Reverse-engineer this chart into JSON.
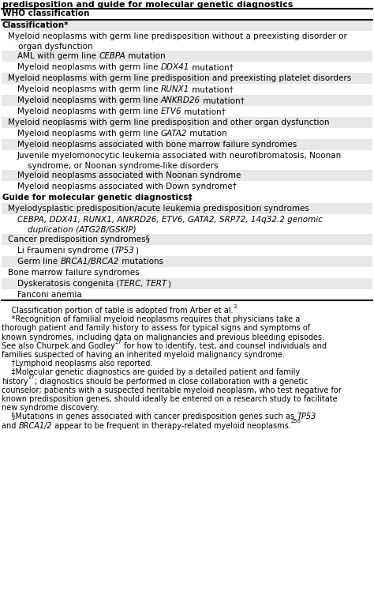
{
  "title": "predisposition and guide for molecular genetic diagnostics",
  "header": "WHO classification",
  "rows": [
    {
      "text": "Classification*",
      "indent": 0,
      "bold": true,
      "bg": "gray",
      "segments": [
        {
          "t": "Classification*",
          "i": false
        }
      ]
    },
    {
      "text": "Myeloid neoplasms with germ line predisposition without a preexisting disorder or organ dysfunction",
      "indent": 1,
      "bold": false,
      "bg": "white",
      "multiline": true,
      "line2": "    organ dysfunction",
      "segments": [
        {
          "t": "Myeloid neoplasms with germ line predisposition without a preexisting disorder or",
          "i": false
        }
      ]
    },
    {
      "text": "AML with germ line ",
      "indent": 2,
      "bold": false,
      "bg": "gray",
      "segments": [
        {
          "t": "AML with germ line ",
          "i": false
        },
        {
          "t": "CEBPA",
          "i": true
        },
        {
          "t": " mutation",
          "i": false
        }
      ]
    },
    {
      "text": "Myeloid neoplasms with germ line ",
      "indent": 2,
      "bold": false,
      "bg": "white",
      "segments": [
        {
          "t": "Myeloid neoplasms with germ line ",
          "i": false
        },
        {
          "t": "DDX41",
          "i": true
        },
        {
          "t": " mutation†",
          "i": false
        }
      ]
    },
    {
      "text": "Myeloid neoplasms with germ line predisposition and preexisting platelet disorders",
      "indent": 1,
      "bold": false,
      "bg": "gray",
      "segments": [
        {
          "t": "Myeloid neoplasms with germ line predisposition and preexisting platelet disorders",
          "i": false
        }
      ]
    },
    {
      "text": "Myeloid neoplasms with germ line ",
      "indent": 2,
      "bold": false,
      "bg": "white",
      "segments": [
        {
          "t": "Myeloid neoplasms with germ line ",
          "i": false
        },
        {
          "t": "RUNX1",
          "i": true
        },
        {
          "t": " mutation†",
          "i": false
        }
      ]
    },
    {
      "text": "Myeloid neoplasms with germ line ",
      "indent": 2,
      "bold": false,
      "bg": "gray",
      "segments": [
        {
          "t": "Myeloid neoplasms with germ line ",
          "i": false
        },
        {
          "t": "ANKRD26",
          "i": true
        },
        {
          "t": " mutation†",
          "i": false
        }
      ]
    },
    {
      "text": "Myeloid neoplasms with germ line ",
      "indent": 2,
      "bold": false,
      "bg": "white",
      "segments": [
        {
          "t": "Myeloid neoplasms with germ line ",
          "i": false
        },
        {
          "t": "ETV6",
          "i": true
        },
        {
          "t": " mutation†",
          "i": false
        }
      ]
    },
    {
      "text": "Myeloid neoplasms with germ line predisposition and other organ dysfunction",
      "indent": 1,
      "bold": false,
      "bg": "gray",
      "segments": [
        {
          "t": "Myeloid neoplasms with germ line predisposition and other organ dysfunction",
          "i": false
        }
      ]
    },
    {
      "text": "Myeloid neoplasms with germ line ",
      "indent": 2,
      "bold": false,
      "bg": "white",
      "segments": [
        {
          "t": "Myeloid neoplasms with germ line ",
          "i": false
        },
        {
          "t": "GATA2",
          "i": true
        },
        {
          "t": " mutation",
          "i": false
        }
      ]
    },
    {
      "text": "Myeloid neoplasms associated with bone marrow failure syndromes",
      "indent": 2,
      "bold": false,
      "bg": "gray",
      "segments": [
        {
          "t": "Myeloid neoplasms associated with bone marrow failure syndromes",
          "i": false
        }
      ]
    },
    {
      "text": "Juvenile myelomonocytic leukemia associated with neurofibromatosis, Noonan syndrome, or Noonan syndrome-like disorders",
      "indent": 2,
      "bold": false,
      "bg": "white",
      "multiline": true,
      "segments": [
        {
          "t": "Juvenile myelomonocytic leukemia associated with neurofibromatosis, Noonan",
          "i": false
        }
      ]
    },
    {
      "text": "Myeloid neoplasms associated with Noonan syndrome",
      "indent": 2,
      "bold": false,
      "bg": "gray",
      "segments": [
        {
          "t": "Myeloid neoplasms associated with Noonan syndrome",
          "i": false
        }
      ]
    },
    {
      "text": "Myeloid neoplasms associated with Down syndrome†",
      "indent": 2,
      "bold": false,
      "bg": "white",
      "segments": [
        {
          "t": "Myeloid neoplasms associated with Down syndrome†",
          "i": false
        }
      ]
    },
    {
      "text": "Guide for molecular genetic diagnostics‡",
      "indent": 0,
      "bold": true,
      "bg": "white",
      "segments": [
        {
          "t": "Guide for molecular genetic diagnostics‡",
          "i": false
        }
      ]
    },
    {
      "text": "Myelodysplastic predisposition/acute leukemia predisposition syndromes",
      "indent": 1,
      "bold": false,
      "bg": "gray",
      "segments": [
        {
          "t": "Myelodysplastic predisposition/acute leukemia predisposition syndromes",
          "i": false
        }
      ]
    },
    {
      "text": "CEBPA italic line",
      "indent": 2,
      "bold": false,
      "bg": "white",
      "multiline": true,
      "segments": [
        {
          "t": "CEBPA, DDX41, RUNX1, ANKRD26, ETV6, GATA2, SRP72, 14q32.2 genomic",
          "i": true
        }
      ]
    },
    {
      "text": "Cancer predisposition syndromes§",
      "indent": 1,
      "bold": false,
      "bg": "gray",
      "segments": [
        {
          "t": "Cancer predisposition syndromes§",
          "i": false
        }
      ]
    },
    {
      "text": "Li Fraumeni syndrome (",
      "indent": 2,
      "bold": false,
      "bg": "white",
      "segments": [
        {
          "t": "Li Fraumeni syndrome (",
          "i": false
        },
        {
          "t": "TP53",
          "i": true
        },
        {
          "t": ")",
          "i": false
        }
      ]
    },
    {
      "text": "Germ line ",
      "indent": 2,
      "bold": false,
      "bg": "gray",
      "segments": [
        {
          "t": "Germ line ",
          "i": false
        },
        {
          "t": "BRCA1/BRCA2",
          "i": true
        },
        {
          "t": " mutations",
          "i": false
        }
      ]
    },
    {
      "text": "Bone marrow failure syndromes",
      "indent": 1,
      "bold": false,
      "bg": "white",
      "segments": [
        {
          "t": "Bone marrow failure syndromes",
          "i": false
        }
      ]
    },
    {
      "text": "Dyskeratosis congenita (",
      "indent": 2,
      "bold": false,
      "bg": "gray",
      "segments": [
        {
          "t": "Dyskeratosis congenita (",
          "i": false
        },
        {
          "t": "TERC, TERT",
          "i": true
        },
        {
          "t": ")",
          "i": false
        }
      ]
    },
    {
      "text": "Fanconi anemia",
      "indent": 2,
      "bold": false,
      "bg": "white",
      "segments": [
        {
          "t": "Fanconi anemia",
          "i": false
        }
      ]
    }
  ],
  "footnote_lines": [
    {
      "segs": [
        {
          "t": "    Classification portion of table is adopted from Arber et al.",
          "i": false
        },
        {
          "t": "3",
          "i": false,
          "sup": true
        }
      ],
      "indent": false
    },
    {
      "segs": [
        {
          "t": "    *Recognition of familial myeloid neoplasms requires that physicians take a",
          "i": false
        }
      ],
      "indent": false
    },
    {
      "segs": [
        {
          "t": "thorough patient and family history to assess for typical signs and symptoms of",
          "i": false
        }
      ],
      "indent": false
    },
    {
      "segs": [
        {
          "t": "known syndromes, including data on malignancies and previous bleeding episodes.",
          "i": false
        }
      ],
      "indent": false
    },
    {
      "segs": [
        {
          "t": "See also Churpek and Godley",
          "i": false
        },
        {
          "t": "27",
          "i": false,
          "sup": true
        },
        {
          "t": " for how to identify, test, and counsel individuals and",
          "i": false
        }
      ],
      "indent": false
    },
    {
      "segs": [
        {
          "t": "families suspected of having an inherited myeloid malignancy syndrome.",
          "i": false
        }
      ],
      "indent": false
    },
    {
      "segs": [
        {
          "t": "    †Lymphoid neoplasms also reported.",
          "i": false
        }
      ],
      "indent": false
    },
    {
      "segs": [
        {
          "t": "    ‡Molecular genetic diagnostics are guided by a detailed patient and family",
          "i": false
        }
      ],
      "indent": false
    },
    {
      "segs": [
        {
          "t": "history",
          "i": false
        },
        {
          "t": "27",
          "i": false,
          "sup": true
        },
        {
          "t": "; diagnostics should be performed in close collaboration with a genetic",
          "i": false
        }
      ],
      "indent": false
    },
    {
      "segs": [
        {
          "t": "counselor; patients with a suspected heritable myeloid neoplasm, who test negative for",
          "i": false
        }
      ],
      "indent": false
    },
    {
      "segs": [
        {
          "t": "known predisposition genes, should ideally be entered on a research study to facilitate",
          "i": false
        }
      ],
      "indent": false
    },
    {
      "segs": [
        {
          "t": "new syndrome discovery.",
          "i": false
        }
      ],
      "indent": false
    },
    {
      "segs": [
        {
          "t": "    §Mutations in genes associated with cancer predisposition genes such as ",
          "i": false
        },
        {
          "t": "TP53",
          "i": true
        }
      ],
      "indent": false
    },
    {
      "segs": [
        {
          "t": "and ",
          "i": false
        },
        {
          "t": "BRCA1/2",
          "i": true
        },
        {
          "t": " appear to be frequent in therapy-related myeloid neoplasms.",
          "i": false
        },
        {
          "t": "256",
          "i": false,
          "sup": true
        }
      ],
      "indent": false
    }
  ]
}
